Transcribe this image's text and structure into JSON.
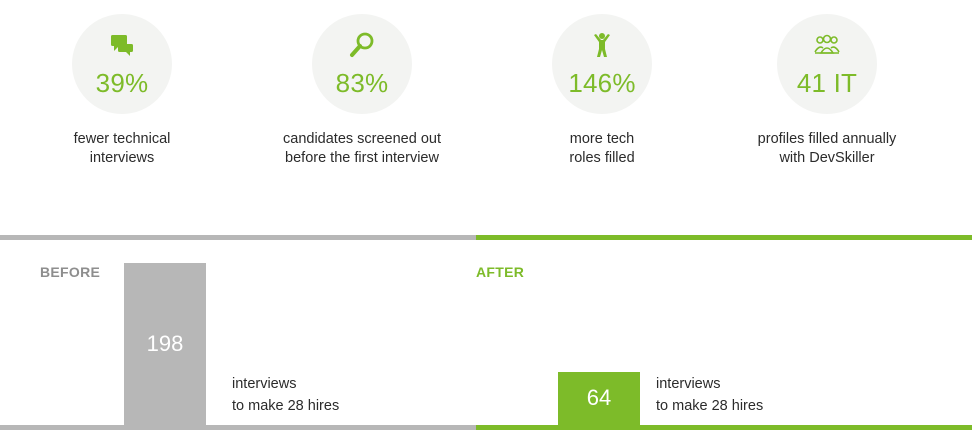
{
  "stats": [
    {
      "icon": "chat-bubbles-icon",
      "value": "39%",
      "caption_line1": "fewer technical",
      "caption_line2": "interviews"
    },
    {
      "icon": "magnifier-icon",
      "value": "83%",
      "caption_line1": "candidates screened out",
      "caption_line2": "before the first interview"
    },
    {
      "icon": "person-cheering-icon",
      "value": "146%",
      "caption_line1": "more tech",
      "caption_line2": "roles filled"
    },
    {
      "icon": "team-icon",
      "value": "41 IT",
      "caption_line1": "profiles filled annually",
      "caption_line2": "with DevSkiller"
    }
  ],
  "comparison": {
    "before": {
      "label": "BEFORE",
      "value": "198",
      "caption_line1": "interviews",
      "caption_line2": "to make 28 hires"
    },
    "after": {
      "label": "AFTER",
      "value": "64",
      "caption_line1": "interviews",
      "caption_line2": "to make 28 hires"
    }
  },
  "colors": {
    "accent_green": "#7dbb29",
    "neutral_gray": "#b7b7b7",
    "circle_bg": "#f3f4f2"
  }
}
